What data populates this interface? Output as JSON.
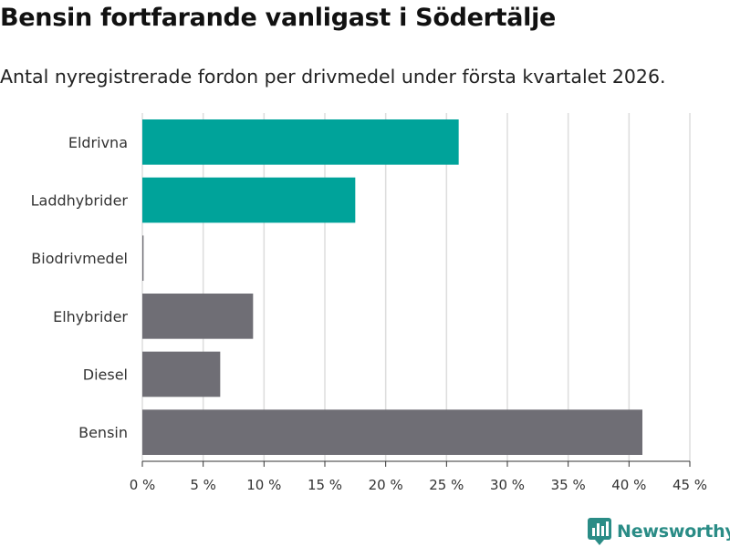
{
  "chart_data": {
    "type": "bar",
    "orientation": "horizontal",
    "title": "Bensin fortfarande vanligast i Södertälje",
    "subtitle": "Antal nyregistrerade fordon per drivmedel under första kvartalet 2026.",
    "categories": [
      "Eldrivna",
      "Laddhybrider",
      "Biodrivmedel",
      "Elhybrider",
      "Diesel",
      "Bensin"
    ],
    "values": [
      26.0,
      17.5,
      0.1,
      9.1,
      6.4,
      41.1
    ],
    "colors": [
      "#00a39a",
      "#00a39a",
      "#6f6e75",
      "#6f6e75",
      "#6f6e75",
      "#6f6e75"
    ],
    "xlim": [
      0,
      45
    ],
    "xticks": [
      0,
      5,
      10,
      15,
      20,
      25,
      30,
      35,
      40,
      45
    ],
    "xtick_labels": [
      "0 %",
      "5 %",
      "10 %",
      "15 %",
      "20 %",
      "25 %",
      "30 %",
      "35 %",
      "40 %",
      "45 %"
    ],
    "xlabel": "",
    "ylabel": "",
    "grid": true
  },
  "branding": {
    "name": "Newsworthy",
    "icon": "newsworthy-logo-icon",
    "color": "#2a8c86"
  }
}
